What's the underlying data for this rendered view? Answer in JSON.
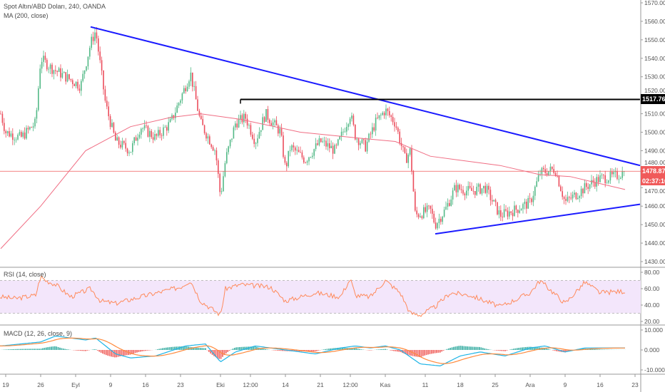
{
  "legend": {
    "symbol": "Spot Altın/ABD Doları, 240, OANDA",
    "ma": "MA (200, close)",
    "rsi": "RSI (14, close)",
    "macd": "MACD (12, 26, close, 9)"
  },
  "tags": {
    "level": "1517.767",
    "last_price": "1478.877",
    "countdown": "02:37:16"
  },
  "colors": {
    "up": "#53b987",
    "down": "#eb4d5c",
    "ma": "#f06d83",
    "trendline": "#1a1aff",
    "level": "#000000",
    "last_price": "#f05a5a",
    "rsi": "#ff8a5b",
    "rsi_band": "#f3e6fb",
    "macd": "#1eb4e6",
    "signal": "#ff8a3d",
    "hist_up": "#26a69a",
    "hist_down": "#ef5350"
  },
  "chart_data": [
    {
      "type": "candlestick",
      "pane": "price",
      "ylim": [
        1430,
        1570
      ],
      "y_ticks": [
        "1570.000",
        "1560.000",
        "1550.000",
        "1540.000",
        "1530.000",
        "1520.000",
        "1510.000",
        "1500.000",
        "1490.000",
        "1480.000",
        "1470.000",
        "1460.000",
        "1450.000",
        "1440.000",
        "1430.000"
      ],
      "x_ticks": [
        {
          "label": "19",
          "date": "2019-08-19"
        },
        {
          "label": "26",
          "date": "2019-08-26"
        },
        {
          "label": "Eyl",
          "date": "2019-09-02"
        },
        {
          "label": "9",
          "date": "2019-09-09"
        },
        {
          "label": "16",
          "date": "2019-09-16"
        },
        {
          "label": "23",
          "date": "2019-09-23"
        },
        {
          "label": "Eki",
          "date": "2019-10-01"
        },
        {
          "label": "12:00",
          "date": "2019-10-07"
        },
        {
          "label": "14",
          "date": "2019-10-14"
        },
        {
          "label": "21",
          "date": "2019-10-21"
        },
        {
          "label": "12:00",
          "date": "2019-10-27"
        },
        {
          "label": "Kas",
          "date": "2019-11-03"
        },
        {
          "label": "11",
          "date": "2019-11-11"
        },
        {
          "label": "18",
          "date": "2019-11-18"
        },
        {
          "label": "25",
          "date": "2019-11-25"
        },
        {
          "label": "Ara",
          "date": "2019-12-02"
        },
        {
          "label": "9",
          "date": "2019-12-09"
        },
        {
          "label": "16",
          "date": "2019-12-16"
        },
        {
          "label": "23",
          "date": "2019-12-23"
        }
      ],
      "close_path": [
        [
          "2019-08-18",
          1510
        ],
        [
          "2019-08-19",
          1500
        ],
        [
          "2019-08-22",
          1497
        ],
        [
          "2019-08-25",
          1505
        ],
        [
          "2019-08-26",
          1540
        ],
        [
          "2019-08-28",
          1535
        ],
        [
          "2019-08-31",
          1530
        ],
        [
          "2019-09-03",
          1525
        ],
        [
          "2019-09-05",
          1548
        ],
        [
          "2019-09-06",
          1555
        ],
        [
          "2019-09-08",
          1515
        ],
        [
          "2019-09-10",
          1495
        ],
        [
          "2019-09-13",
          1490
        ],
        [
          "2019-09-15",
          1503
        ],
        [
          "2019-09-18",
          1497
        ],
        [
          "2019-09-21",
          1505
        ],
        [
          "2019-09-24",
          1525
        ],
        [
          "2019-09-25",
          1532
        ],
        [
          "2019-09-27",
          1505
        ],
        [
          "2019-09-30",
          1490
        ],
        [
          "2019-10-01",
          1465
        ],
        [
          "2019-10-02",
          1485
        ],
        [
          "2019-10-04",
          1505
        ],
        [
          "2019-10-06",
          1508
        ],
        [
          "2019-10-08",
          1495
        ],
        [
          "2019-10-10",
          1510
        ],
        [
          "2019-10-13",
          1500
        ],
        [
          "2019-10-14",
          1480
        ],
        [
          "2019-10-15",
          1492
        ],
        [
          "2019-10-18",
          1485
        ],
        [
          "2019-10-21",
          1495
        ],
        [
          "2019-10-24",
          1490
        ],
        [
          "2019-10-27",
          1510
        ],
        [
          "2019-10-28",
          1498
        ],
        [
          "2019-10-30",
          1492
        ],
        [
          "2019-11-01",
          1505
        ],
        [
          "2019-11-03",
          1512
        ],
        [
          "2019-11-05",
          1505
        ],
        [
          "2019-11-07",
          1485
        ],
        [
          "2019-11-08",
          1490
        ],
        [
          "2019-11-09",
          1455
        ],
        [
          "2019-11-12",
          1458
        ],
        [
          "2019-11-13",
          1450
        ],
        [
          "2019-11-15",
          1458
        ],
        [
          "2019-11-17",
          1470
        ],
        [
          "2019-11-20",
          1468
        ],
        [
          "2019-11-23",
          1470
        ],
        [
          "2019-11-26",
          1455
        ],
        [
          "2019-11-29",
          1458
        ],
        [
          "2019-12-02",
          1462
        ],
        [
          "2019-12-04",
          1478
        ],
        [
          "2019-12-07",
          1480
        ],
        [
          "2019-12-09",
          1462
        ],
        [
          "2019-12-12",
          1468
        ],
        [
          "2019-12-14",
          1472
        ],
        [
          "2019-12-16",
          1475
        ],
        [
          "2019-12-19",
          1476
        ],
        [
          "2019-12-21",
          1478.877
        ]
      ],
      "ma200": [
        [
          "2019-08-18",
          1437
        ],
        [
          "2019-08-26",
          1460
        ],
        [
          "2019-09-04",
          1490
        ],
        [
          "2019-09-13",
          1503
        ],
        [
          "2019-09-21",
          1508
        ],
        [
          "2019-09-27",
          1510
        ],
        [
          "2019-10-05",
          1507
        ],
        [
          "2019-10-17",
          1500
        ],
        [
          "2019-10-28",
          1497
        ],
        [
          "2019-11-05",
          1495
        ],
        [
          "2019-11-12",
          1487
        ],
        [
          "2019-11-26",
          1482
        ],
        [
          "2019-12-04",
          1477
        ],
        [
          "2019-12-10",
          1476
        ],
        [
          "2019-12-21",
          1469
        ]
      ],
      "trendlines": [
        {
          "name": "upper",
          "from": [
            "2019-09-05",
            1557
          ],
          "to": [
            "2019-12-24",
            1482
          ]
        },
        {
          "name": "lower",
          "from": [
            "2019-11-13",
            1445
          ],
          "to": [
            "2019-12-24",
            1461
          ]
        }
      ],
      "level": {
        "from": "2019-10-05",
        "to": "2019-12-24",
        "price": 1517.767
      },
      "last_price": 1478.877
    },
    {
      "type": "line",
      "pane": "rsi",
      "ylim": [
        15,
        85
      ],
      "band": [
        30,
        70
      ],
      "y_ticks": [
        "80.00",
        "60.00",
        "40.00",
        "20.00"
      ],
      "values": [
        [
          "2019-08-18",
          50
        ],
        [
          "2019-08-21",
          48
        ],
        [
          "2019-08-25",
          52
        ],
        [
          "2019-08-26",
          75
        ],
        [
          "2019-08-27",
          70
        ],
        [
          "2019-08-29",
          65
        ],
        [
          "2019-09-01",
          50
        ],
        [
          "2019-09-05",
          60
        ],
        [
          "2019-09-07",
          45
        ],
        [
          "2019-09-10",
          42
        ],
        [
          "2019-09-15",
          50
        ],
        [
          "2019-09-23",
          62
        ],
        [
          "2019-09-25",
          70
        ],
        [
          "2019-09-27",
          45
        ],
        [
          "2019-10-01",
          28
        ],
        [
          "2019-10-02",
          60
        ],
        [
          "2019-10-05",
          65
        ],
        [
          "2019-10-11",
          62
        ],
        [
          "2019-10-14",
          45
        ],
        [
          "2019-10-20",
          55
        ],
        [
          "2019-10-25",
          50
        ],
        [
          "2019-10-27",
          72
        ],
        [
          "2019-10-28",
          52
        ],
        [
          "2019-10-31",
          50
        ],
        [
          "2019-11-03",
          70
        ],
        [
          "2019-11-06",
          55
        ],
        [
          "2019-11-08",
          30
        ],
        [
          "2019-11-10",
          28
        ],
        [
          "2019-11-13",
          38
        ],
        [
          "2019-11-16",
          55
        ],
        [
          "2019-11-20",
          52
        ],
        [
          "2019-11-26",
          38
        ],
        [
          "2019-12-02",
          55
        ],
        [
          "2019-12-04",
          70
        ],
        [
          "2019-12-09",
          42
        ],
        [
          "2019-12-13",
          68
        ],
        [
          "2019-12-16",
          55
        ],
        [
          "2019-12-21",
          57
        ]
      ]
    },
    {
      "type": "line",
      "pane": "macd",
      "ylim": [
        -13,
        13
      ],
      "y_ticks": [
        "10.000",
        "0.000",
        "-10.000"
      ],
      "macd": [
        [
          "2019-08-18",
          2
        ],
        [
          "2019-08-26",
          4
        ],
        [
          "2019-08-29",
          7
        ],
        [
          "2019-09-04",
          5
        ],
        [
          "2019-09-06",
          6
        ],
        [
          "2019-09-10",
          -2
        ],
        [
          "2019-09-13",
          -4
        ],
        [
          "2019-09-18",
          -3
        ],
        [
          "2019-09-24",
          2
        ],
        [
          "2019-09-28",
          3
        ],
        [
          "2019-10-01",
          -6
        ],
        [
          "2019-10-04",
          -1
        ],
        [
          "2019-10-08",
          2
        ],
        [
          "2019-10-14",
          0
        ],
        [
          "2019-10-20",
          -2
        ],
        [
          "2019-10-25",
          1
        ],
        [
          "2019-10-28",
          2
        ],
        [
          "2019-10-31",
          1
        ],
        [
          "2019-11-03",
          2
        ],
        [
          "2019-11-06",
          0
        ],
        [
          "2019-11-10",
          -7
        ],
        [
          "2019-11-14",
          -8
        ],
        [
          "2019-11-18",
          -3
        ],
        [
          "2019-11-22",
          -1
        ],
        [
          "2019-11-27",
          -3
        ],
        [
          "2019-12-02",
          1
        ],
        [
          "2019-12-05",
          2
        ],
        [
          "2019-12-09",
          -1
        ],
        [
          "2019-12-13",
          1
        ],
        [
          "2019-12-17",
          1
        ],
        [
          "2019-12-21",
          1
        ]
      ]
    }
  ]
}
